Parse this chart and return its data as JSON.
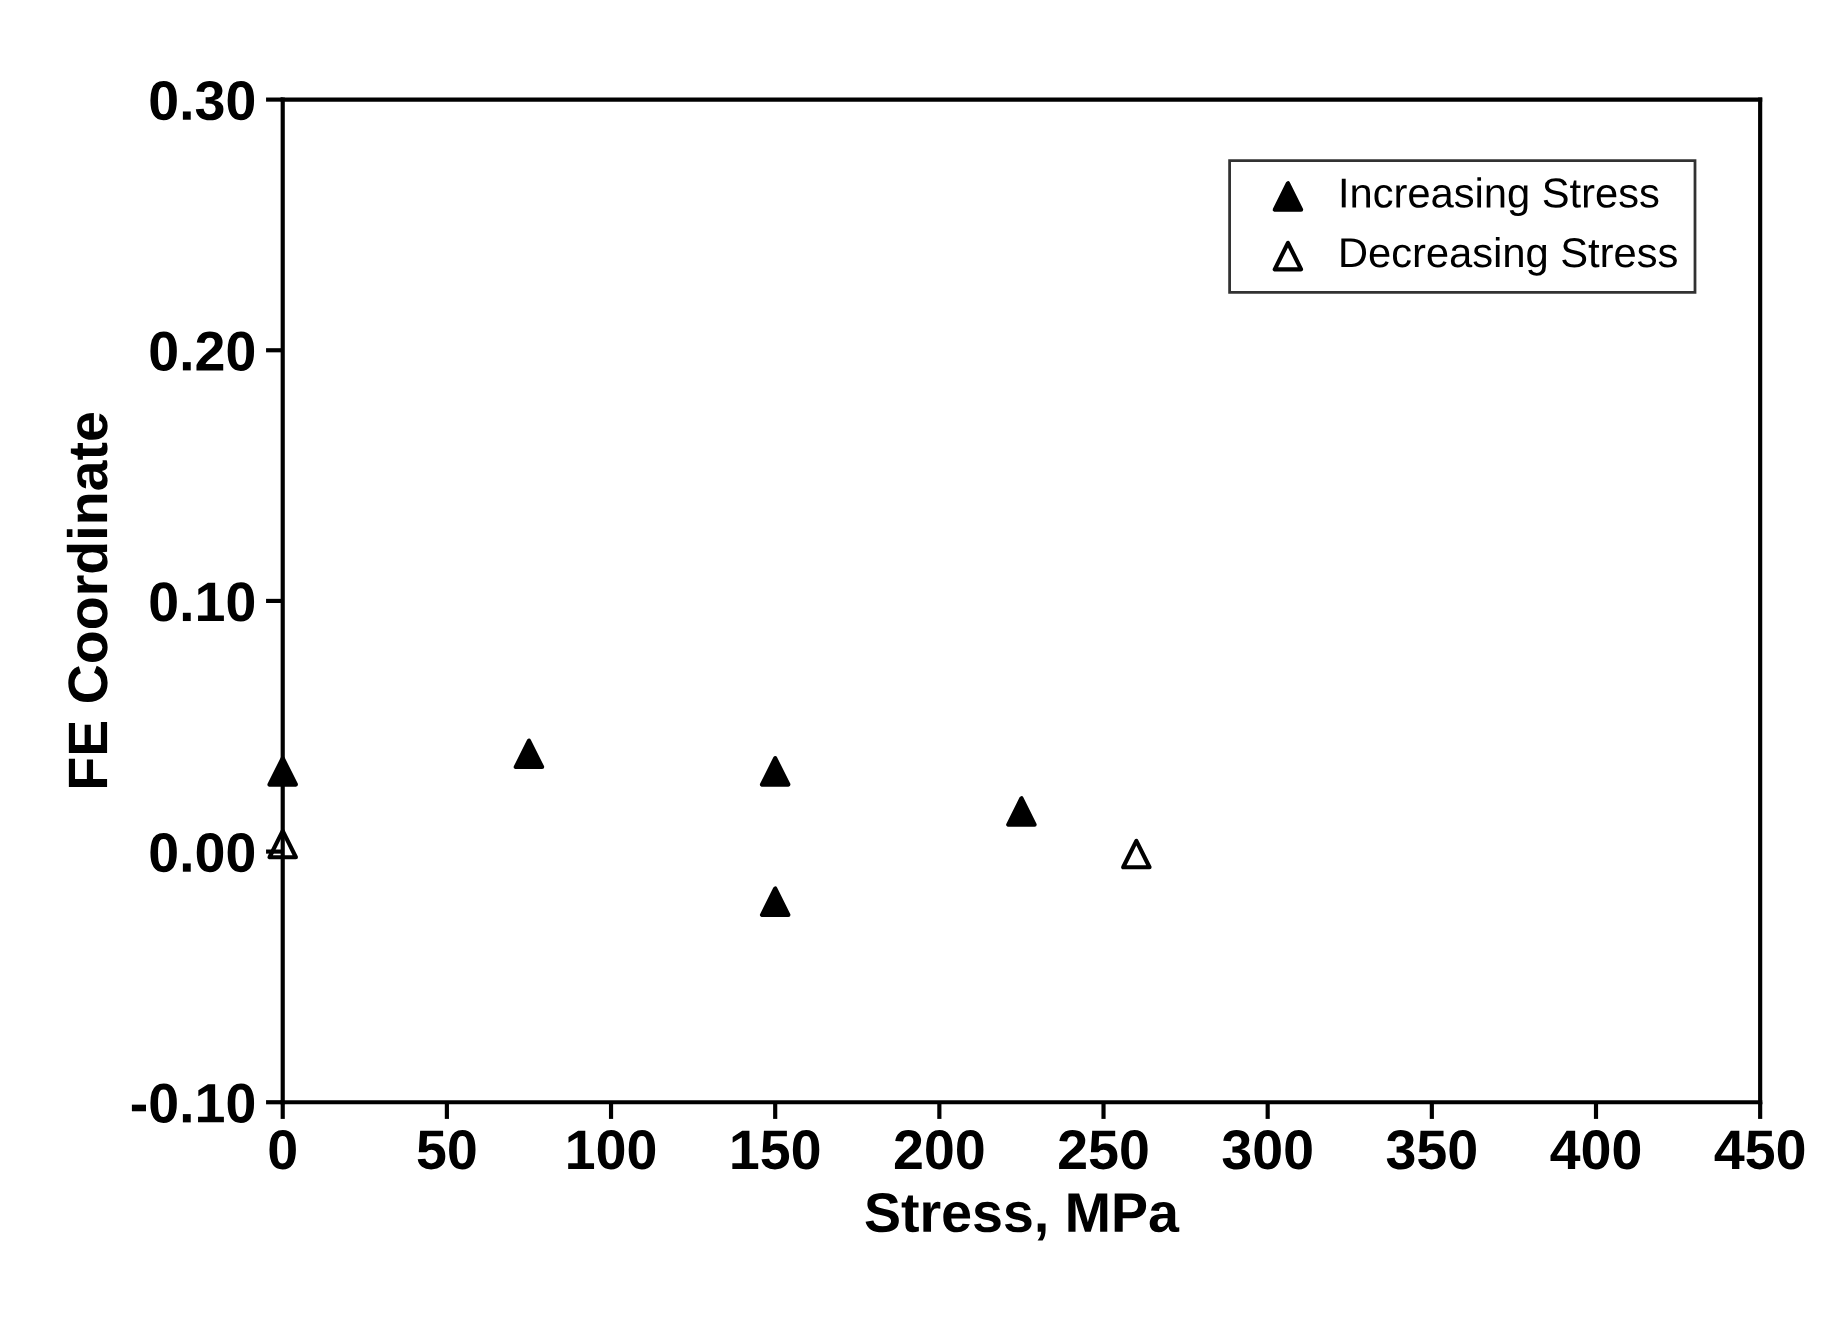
{
  "chart_data": {
    "type": "scatter",
    "xlabel": "Stress, MPa",
    "ylabel": "FE Coordinate",
    "xlim": [
      0,
      450
    ],
    "xticks": [
      0,
      50,
      100,
      150,
      200,
      250,
      300,
      350,
      400,
      450
    ],
    "ylim": [
      -0.1,
      0.3
    ],
    "yticks": [
      {
        "value": -0.1,
        "label": "-0.10"
      },
      {
        "value": 0,
        "label": "0.00"
      },
      {
        "value": 0.1,
        "label": "0.10"
      },
      {
        "value": 0.2,
        "label": "0.20"
      },
      {
        "value": 0.3,
        "label": "0.30"
      }
    ],
    "marker": "triangle",
    "legend": "top right",
    "grid": false,
    "series": [
      {
        "name": "Increasing Stress",
        "color": "#000000",
        "x": [
          0,
          75,
          150,
          150,
          225
        ],
        "values": [
          0.032,
          0.039,
          0.032,
          -0.02,
          0.016
        ]
      },
      {
        "name": "Decreasing Stress",
        "color": "#000000",
        "x": [
          0,
          260
        ],
        "values": [
          0.003,
          -0.001
        ]
      }
    ]
  }
}
